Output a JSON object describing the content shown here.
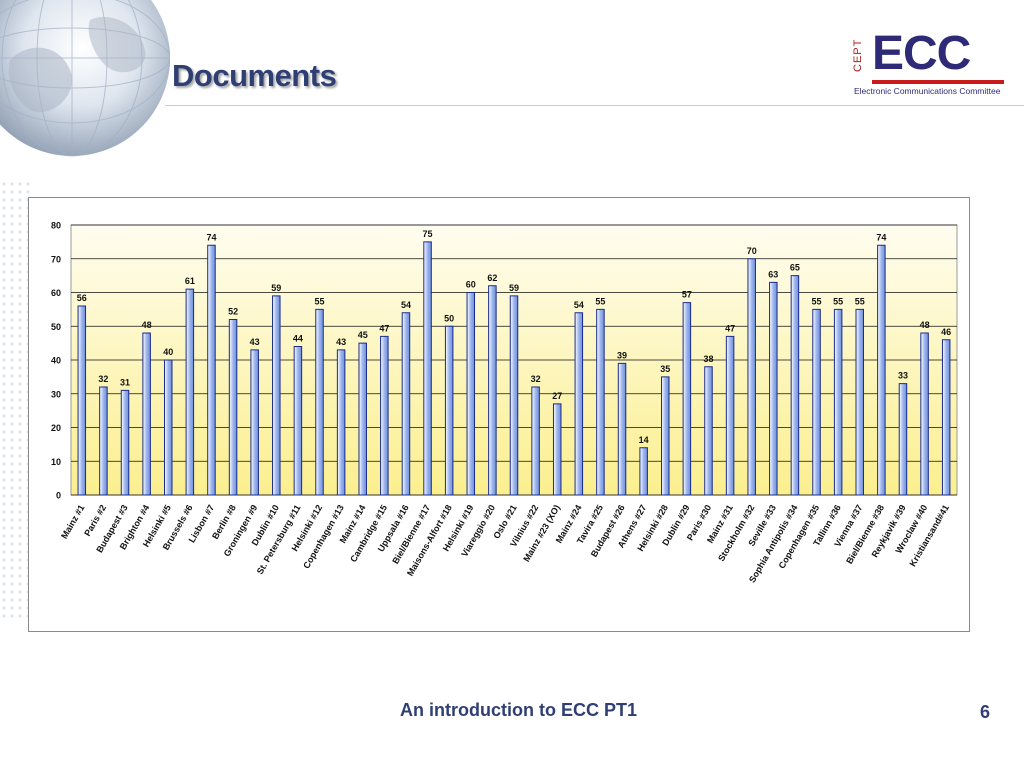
{
  "slide": {
    "title": "Documents",
    "footer": "An introduction to ECC PT1",
    "page_number": "6"
  },
  "logo": {
    "cept": "CEPT",
    "ecc": "ECC",
    "subtitle": "Electronic Communications Committee"
  },
  "colors": {
    "title": "#2f3f73",
    "bar_fill": "#9db6ef",
    "bar_stroke": "#1a2b8a",
    "plot_top": "#fffdf0",
    "plot_bottom": "#fbef8e",
    "logo_red": "#c81c1c",
    "logo_blue": "#2e2a78"
  },
  "chart_data": {
    "type": "bar",
    "categories": [
      "Mainz #1",
      "Paris #2",
      "Budapest #3",
      "Brighton #4",
      "Helsinki #5",
      "Brussels #6",
      "Lisbon #7",
      "Berlin #8",
      "Groningen #9",
      "Dublin #10",
      "St. Petersburg #11",
      "Helsinki #12",
      "Copenhagen #13",
      "Mainz #14",
      "Cambridge #15",
      "Uppsala #16",
      "Biel/Bienne #17",
      "Maisons-Alfort #18",
      "Helsinki #19",
      "Viareggio #20",
      "Oslo #21",
      "Vilnius #22",
      "Mainz #23 (XO)",
      "Mainz #24",
      "Tavira #25",
      "Budapest #26",
      "Athens #27",
      "Helsinki #28",
      "Dublin #29",
      "Paris #30",
      "Mainz #31",
      "Stockholm #32",
      "Seville #33",
      "Sophia Antipolis #34",
      "Copenhagen #35",
      "Tallinn #36",
      "Vienna #37",
      "Biel/Bienne #38",
      "Reykjavik #39",
      "Wroclaw #40",
      "Kristiansand#41"
    ],
    "values": [
      56,
      32,
      31,
      48,
      40,
      61,
      74,
      52,
      43,
      59,
      44,
      55,
      43,
      45,
      47,
      54,
      75,
      50,
      60,
      62,
      59,
      32,
      27,
      54,
      55,
      39,
      14,
      35,
      57,
      38,
      47,
      70,
      63,
      65,
      55,
      55,
      55,
      74,
      33,
      48,
      46
    ],
    "yticks": [
      0,
      10,
      20,
      30,
      40,
      50,
      60,
      70,
      80
    ],
    "ylim": [
      0,
      80
    ],
    "grid": "horizontal",
    "data_labels": true,
    "legend": "none"
  }
}
